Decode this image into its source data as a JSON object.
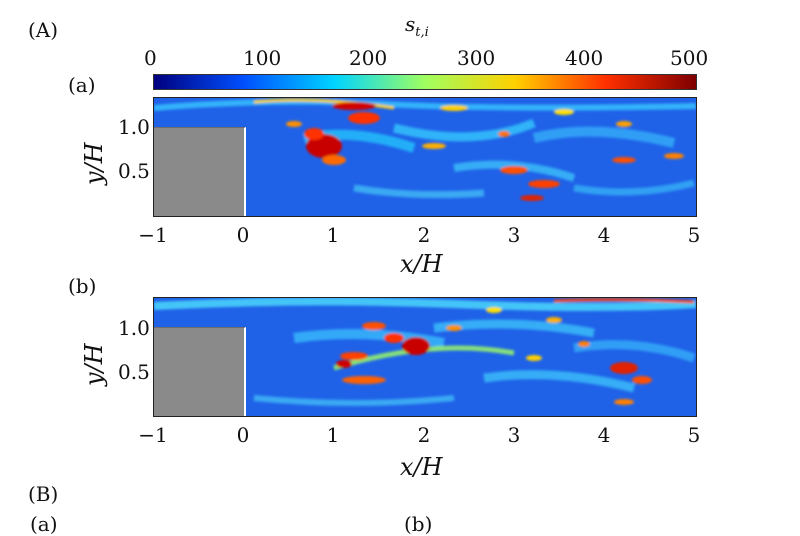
{
  "figure": {
    "section_A_label": "(A)",
    "section_B_label": "(B)",
    "colorbar": {
      "label": "s",
      "label_sub": "t,i",
      "ticks": [
        "0",
        "100",
        "200",
        "300",
        "400",
        "500"
      ],
      "range": [
        0,
        500
      ],
      "colors": [
        "#00007f",
        "#0050ff",
        "#00d4ff",
        "#a0ff60",
        "#ffd000",
        "#ff3000",
        "#7f0000"
      ]
    },
    "panels": [
      {
        "label": "(a)",
        "x_ticks": [
          "−1",
          "0",
          "1",
          "2",
          "3",
          "4",
          "5"
        ],
        "y_ticks": [
          "1.0",
          "0.5"
        ],
        "x_label": "x/H",
        "y_label": "y/H"
      },
      {
        "label": "(b)",
        "x_ticks": [
          "−1",
          "0",
          "1",
          "2",
          "3",
          "4",
          "5"
        ],
        "y_ticks": [
          "1.0",
          "0.5"
        ],
        "x_label": "x/H",
        "y_label": "y/H"
      }
    ],
    "bottom_labels": [
      "(a)",
      "(b)"
    ]
  }
}
